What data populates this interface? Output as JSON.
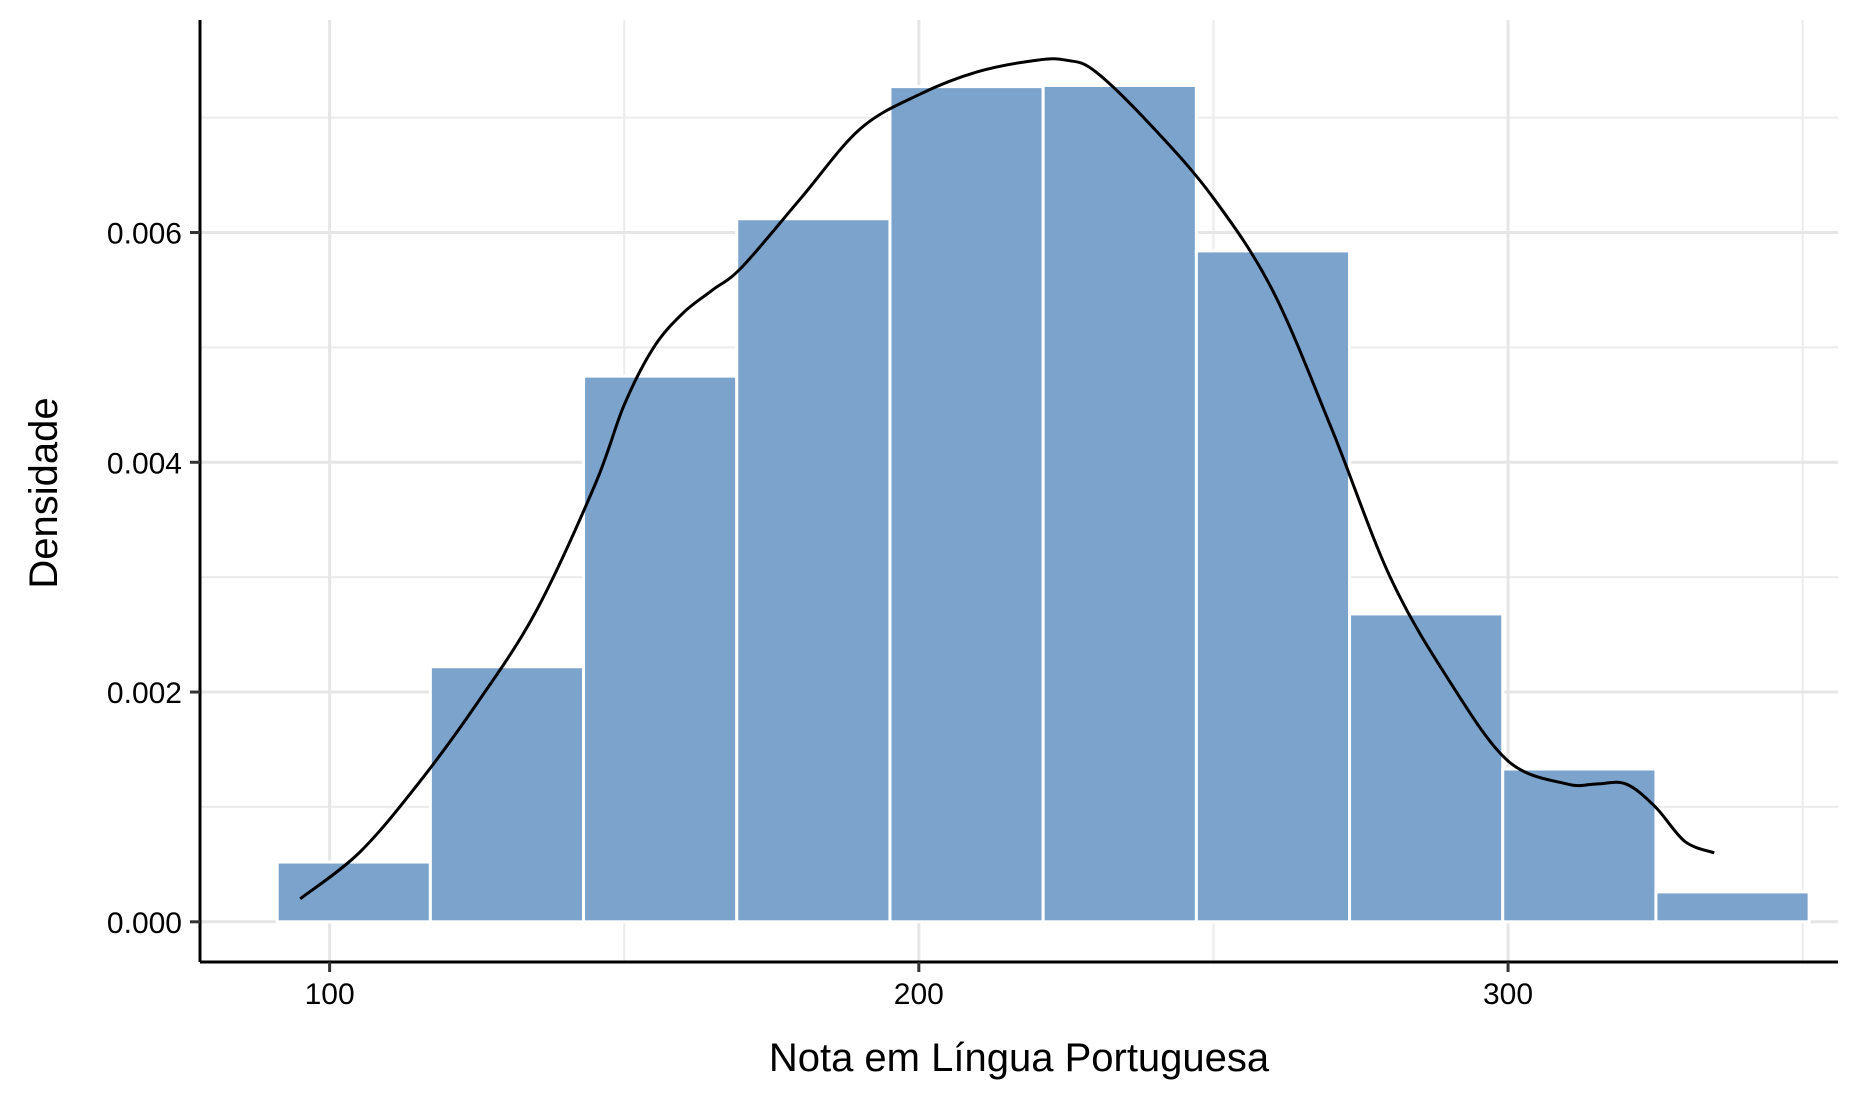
{
  "chart_data": {
    "type": "bar",
    "subtype": "histogram-with-density",
    "title": "",
    "xlabel": "Nota em Língua Portuguesa",
    "ylabel": "Densidade",
    "xlim": [
      78,
      356
    ],
    "ylim": [
      -0.00035,
      0.00785
    ],
    "x_ticks": [
      100,
      200,
      300
    ],
    "x_tick_labels": [
      "100",
      "200",
      "300"
    ],
    "y_ticks": [
      0.0,
      0.002,
      0.004,
      0.006
    ],
    "y_tick_labels": [
      "0.000",
      "0.002",
      "0.004",
      "0.006"
    ],
    "grid": true,
    "legend": "none",
    "bar_color": "#7BA3CB",
    "bar_edge_color": "#ffffff",
    "line_color": "#000000",
    "bins": [
      {
        "x0": 91.1,
        "x1": 117.1,
        "density": 0.00052
      },
      {
        "x0": 117.1,
        "x1": 143.1,
        "density": 0.00222
      },
      {
        "x0": 143.1,
        "x1": 169.1,
        "density": 0.00475
      },
      {
        "x0": 169.1,
        "x1": 195.1,
        "density": 0.00612
      },
      {
        "x0": 195.1,
        "x1": 221.1,
        "density": 0.00727
      },
      {
        "x0": 221.1,
        "x1": 247.1,
        "density": 0.00728
      },
      {
        "x0": 247.1,
        "x1": 273.1,
        "density": 0.00584
      },
      {
        "x0": 273.1,
        "x1": 299.1,
        "density": 0.00268
      },
      {
        "x0": 299.1,
        "x1": 325.1,
        "density": 0.00133
      },
      {
        "x0": 325.1,
        "x1": 351.1,
        "density": 0.00026
      }
    ],
    "density_curve": {
      "x": [
        95,
        105,
        115,
        125,
        135,
        145,
        150,
        155,
        160,
        165,
        170,
        180,
        190,
        200,
        210,
        220,
        225,
        230,
        240,
        250,
        260,
        270,
        280,
        290,
        300,
        310,
        315,
        320,
        325,
        330,
        335
      ],
      "y": [
        0.0002,
        0.0006,
        0.0012,
        0.0019,
        0.0027,
        0.0038,
        0.0045,
        0.005,
        0.0053,
        0.0055,
        0.0057,
        0.0063,
        0.0069,
        0.0072,
        0.0074,
        0.0075,
        0.0075,
        0.0074,
        0.0069,
        0.0063,
        0.0055,
        0.0043,
        0.003,
        0.0021,
        0.0014,
        0.0012,
        0.0012,
        0.0012,
        0.001,
        0.0007,
        0.0006
      ]
    }
  }
}
